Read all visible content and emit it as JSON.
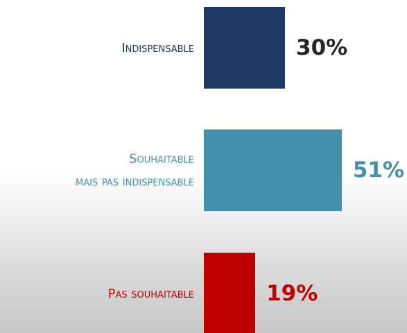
{
  "chart_data": {
    "type": "bar",
    "orientation": "horizontal",
    "categories": [
      "Indispensable",
      "Souhaitable\nmais pas indispensable",
      "Pas souhaitable"
    ],
    "values": [
      30,
      51,
      19
    ],
    "value_labels": [
      "30%",
      "51%",
      "19%"
    ],
    "colors": [
      "#1f3864",
      "#4590ad",
      "#c00000"
    ],
    "value_label_colors": [
      "#262626",
      "#4590ad",
      "#c00000"
    ]
  }
}
